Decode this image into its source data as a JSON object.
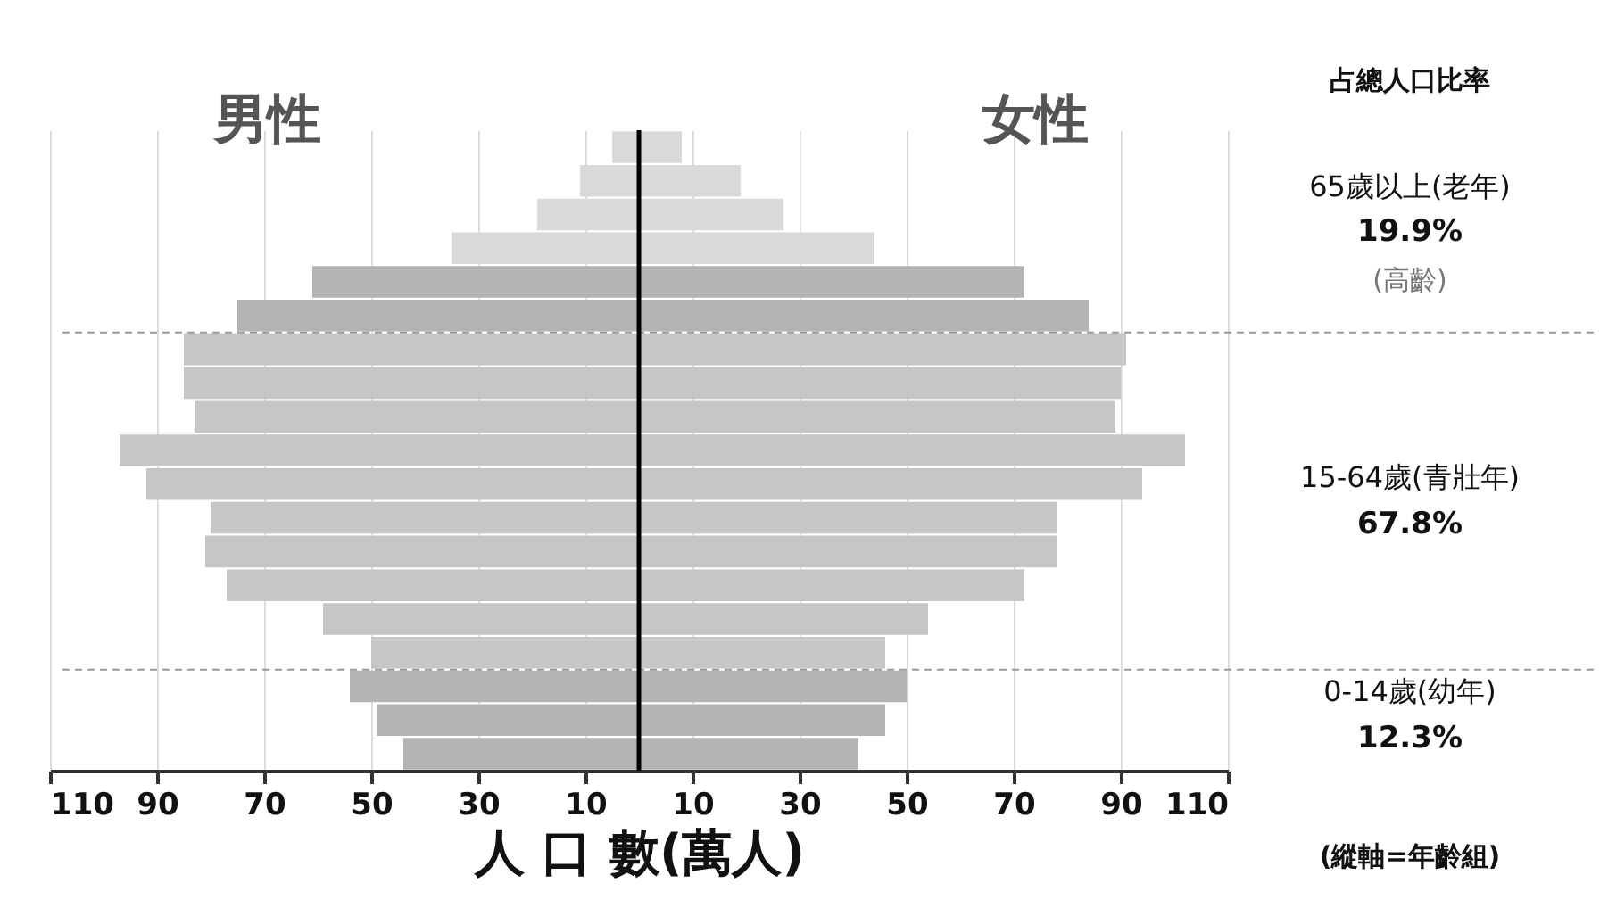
{
  "chart_data": {
    "type": "bar",
    "orientation": "horizontal",
    "xlabel": "人 口 數(萬人)",
    "categories": [
      null,
      null,
      null,
      null,
      null,
      null,
      null,
      null,
      null,
      null,
      null,
      null,
      null,
      null,
      null,
      null,
      null,
      null,
      null
    ],
    "series": [
      {
        "values": [
          -5,
          -11,
          -19,
          -35,
          -61,
          -75,
          -85,
          -85,
          -83,
          -97,
          -92,
          -80,
          -81,
          -77,
          -59,
          -50,
          -54,
          -49,
          -44
        ],
        "colors": [
          "#d9d9d9",
          "#d9d9d9",
          "#d9d9d9",
          "#d9d9d9",
          "#b3b3b3",
          "#b3b3b3",
          "#c6c6c6",
          "#c6c6c6",
          "#c6c6c6",
          "#c6c6c6",
          "#c6c6c6",
          "#c6c6c6",
          "#c6c6c6",
          "#c6c6c6",
          "#c6c6c6",
          "#c6c6c6",
          "#b3b3b3",
          "#b3b3b3",
          "#b3b3b3"
        ]
      },
      {
        "values": [
          8,
          19,
          27,
          44,
          72,
          84,
          91,
          90,
          89,
          102,
          94,
          78,
          78,
          72,
          54,
          46,
          50,
          46,
          41
        ],
        "colors": [
          "#d9d9d9",
          "#d9d9d9",
          "#d9d9d9",
          "#d9d9d9",
          "#b3b3b3",
          "#b3b3b3",
          "#c6c6c6",
          "#c6c6c6",
          "#c6c6c6",
          "#c6c6c6",
          "#c6c6c6",
          "#c6c6c6",
          "#c6c6c6",
          "#c6c6c6",
          "#c6c6c6",
          "#c6c6c6",
          "#b3b3b3",
          "#b3b3b3",
          "#b3b3b3"
        ]
      }
    ],
    "xlim": [
      -110,
      110
    ],
    "xticks": [
      {
        "value": -110,
        "label": "110"
      },
      {
        "value": -90,
        "label": "90"
      },
      {
        "value": -70,
        "label": "70"
      },
      {
        "value": -50,
        "label": "50"
      },
      {
        "value": -30,
        "label": "30"
      },
      {
        "value": -10,
        "label": "10"
      },
      10,
      30,
      50,
      70,
      90,
      110
    ],
    "grid": "x",
    "tick_labels": "x",
    "stacked": true,
    "ref_lines": [
      {
        "axis": "x",
        "value": 0,
        "color": "#000000",
        "line_style": "solid"
      }
    ],
    "annotations": [
      "男性",
      "女性",
      "占總人口比率",
      "65歲以上(老年)",
      "19.9%",
      "(高齡)",
      "15-64歲(青壯年)",
      "67.8%",
      "0-14歲(幼年)",
      "12.3%",
      "(縱軸=年齡組)"
    ]
  }
}
